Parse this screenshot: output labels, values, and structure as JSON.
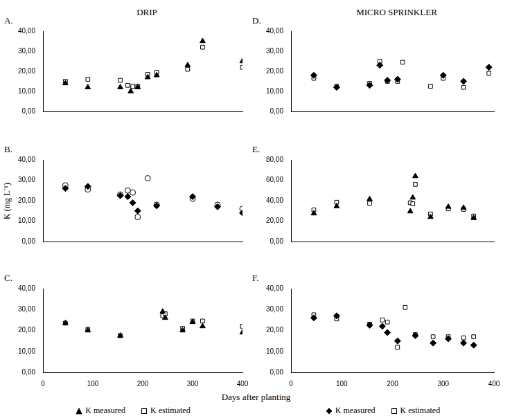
{
  "chart_data": [
    {
      "type": "scatter",
      "title": "DRIP",
      "subtitle": "A.",
      "tick_labels": "y",
      "grid": false,
      "xlim": [
        0,
        400
      ],
      "ylim": [
        0,
        40
      ],
      "yticks": [
        {
          "value": 0,
          "label": "0,00"
        },
        {
          "value": 10,
          "label": "10,00"
        },
        {
          "value": 20,
          "label": "20,00"
        },
        {
          "value": 30,
          "label": "30,00"
        },
        {
          "value": 40,
          "label": "40,00"
        }
      ],
      "series": [
        {
          "name": "K measured",
          "color": "#000000",
          "marker": "triangle",
          "x": [
            45,
            90,
            155,
            176,
            190,
            210,
            228,
            290,
            320,
            400
          ],
          "values": [
            14,
            12,
            12,
            10,
            12,
            17,
            18,
            23,
            35,
            25
          ]
        },
        {
          "name": "K estimated",
          "color": "#000000",
          "marker": "open square",
          "x": [
            45,
            90,
            155,
            170,
            180,
            190,
            210,
            228,
            290,
            320,
            400
          ],
          "values": [
            15,
            16,
            15.5,
            13,
            12.5,
            12.5,
            18.5,
            19.5,
            21,
            32,
            22
          ]
        }
      ]
    },
    {
      "type": "scatter",
      "subtitle": "B.",
      "ylabel": "K (mg L⁻¹)",
      "tick_labels": "y",
      "grid": false,
      "xlim": [
        0,
        400
      ],
      "ylim": [
        0,
        40
      ],
      "yticks": [
        {
          "value": 0,
          "label": "0,00"
        },
        {
          "value": 10,
          "label": "10,00"
        },
        {
          "value": 20,
          "label": "20,00"
        },
        {
          "value": 30,
          "label": "30,00"
        },
        {
          "value": 40,
          "label": "40,00"
        }
      ],
      "series": [
        {
          "name": "K measured",
          "color": "#000000",
          "marker": "diamond",
          "x": [
            45,
            90,
            155,
            170,
            180,
            190,
            228,
            300,
            350,
            400
          ],
          "values": [
            26,
            27,
            22.5,
            22,
            19,
            15,
            17.5,
            22,
            17,
            14
          ]
        },
        {
          "name": "K estimated",
          "color": "#000000",
          "marker": "open circle",
          "x": [
            45,
            90,
            155,
            170,
            180,
            190,
            210,
            228,
            300,
            350,
            400
          ],
          "values": [
            27.5,
            25.5,
            23,
            25,
            24,
            12,
            31,
            18,
            21,
            18,
            16
          ]
        }
      ]
    },
    {
      "type": "scatter",
      "subtitle": "C.",
      "xlabel": "Days after planting",
      "legend": "bottom",
      "grid": false,
      "xlim": [
        0,
        400
      ],
      "xticks": [
        0,
        100,
        200,
        300,
        400
      ],
      "ylim": [
        0,
        40
      ],
      "yticks": [
        {
          "value": 0,
          "label": "0,00"
        },
        {
          "value": 10,
          "label": "10,00"
        },
        {
          "value": 20,
          "label": "20,00"
        },
        {
          "value": 30,
          "label": "30,00"
        },
        {
          "value": 40,
          "label": "40,00"
        }
      ],
      "series": [
        {
          "name": "K measured",
          "color": "#000000",
          "marker": "triangle",
          "x": [
            45,
            90,
            155,
            240,
            245,
            280,
            300,
            320,
            400
          ],
          "values": [
            23.5,
            20,
            17.5,
            29,
            26,
            20,
            24,
            22,
            19
          ]
        },
        {
          "name": "K estimated",
          "color": "#000000",
          "marker": "open square",
          "x": [
            45,
            90,
            155,
            240,
            245,
            280,
            300,
            320,
            400
          ],
          "values": [
            23.5,
            20.5,
            17.5,
            27,
            28,
            21,
            24.5,
            24.5,
            22
          ]
        }
      ]
    },
    {
      "type": "scatter",
      "title": "MICRO SPRINKLER",
      "subtitle": "D.",
      "tick_labels": "y",
      "grid": false,
      "xlim": [
        0,
        400
      ],
      "ylim": [
        0,
        40
      ],
      "yticks": [
        {
          "value": 0,
          "label": "0,00"
        },
        {
          "value": 10,
          "label": "10,00"
        },
        {
          "value": 20,
          "label": "20,00"
        },
        {
          "value": 30,
          "label": "30,00"
        },
        {
          "value": 40,
          "label": "40,00"
        }
      ],
      "series": [
        {
          "name": "K measured",
          "color": "#000000",
          "marker": "diamond",
          "x": [
            45,
            90,
            155,
            175,
            190,
            210,
            300,
            340,
            390
          ],
          "values": [
            18,
            12,
            13,
            23,
            15.5,
            16,
            18,
            15,
            22
          ]
        },
        {
          "name": "K estimated",
          "color": "#000000",
          "marker": "open square",
          "x": [
            45,
            90,
            155,
            175,
            190,
            210,
            220,
            275,
            300,
            340,
            390
          ],
          "values": [
            16.5,
            12.5,
            14,
            25,
            15,
            15,
            24.5,
            12.5,
            16.5,
            12,
            19
          ]
        }
      ]
    },
    {
      "type": "scatter",
      "subtitle": "E.",
      "tick_labels": "y",
      "grid": false,
      "xlim": [
        0,
        400
      ],
      "ylim": [
        0,
        80
      ],
      "yticks": [
        {
          "value": 0,
          "label": "0,00"
        },
        {
          "value": 20,
          "label": "20,00"
        },
        {
          "value": 40,
          "label": "40,00"
        },
        {
          "value": 60,
          "label": "60,00"
        },
        {
          "value": 80,
          "label": "80,00"
        }
      ],
      "series": [
        {
          "name": "K measured",
          "color": "#000000",
          "marker": "triangle",
          "x": [
            45,
            90,
            155,
            235,
            240,
            245,
            275,
            310,
            340,
            360
          ],
          "values": [
            27.5,
            34.5,
            41.5,
            29.5,
            43,
            64,
            24,
            34,
            33,
            23
          ]
        },
        {
          "name": "K estimated",
          "color": "#000000",
          "marker": "open square",
          "x": [
            45,
            90,
            155,
            235,
            240,
            245,
            275,
            310,
            340,
            360
          ],
          "values": [
            31,
            38.5,
            37.5,
            38,
            37,
            56,
            27,
            32,
            31.5,
            25
          ]
        }
      ]
    },
    {
      "type": "scatter",
      "subtitle": "F.",
      "legend": "bottom",
      "grid": false,
      "xlim": [
        0,
        400
      ],
      "xticks": [
        0,
        100,
        200,
        300,
        400
      ],
      "ylim": [
        0,
        40
      ],
      "yticks": [
        {
          "value": 0,
          "label": "0,00"
        },
        {
          "value": 10,
          "label": "10,00"
        },
        {
          "value": 20,
          "label": "20,00"
        },
        {
          "value": 30,
          "label": "30,00"
        },
        {
          "value": 40,
          "label": "40,00"
        }
      ],
      "series": [
        {
          "name": "K measured",
          "color": "#000000",
          "marker": "diamond",
          "x": [
            45,
            90,
            155,
            180,
            190,
            210,
            245,
            280,
            310,
            340,
            360
          ],
          "values": [
            26,
            27,
            22.5,
            22,
            19,
            15,
            17.5,
            14,
            16,
            14,
            13
          ]
        },
        {
          "name": "K estimated",
          "color": "#000000",
          "marker": "open square",
          "x": [
            45,
            90,
            155,
            180,
            190,
            210,
            225,
            245,
            280,
            310,
            340,
            360
          ],
          "values": [
            27.5,
            25.5,
            23,
            25,
            24,
            12,
            31,
            18,
            17,
            17,
            16.5,
            17
          ]
        }
      ]
    }
  ]
}
